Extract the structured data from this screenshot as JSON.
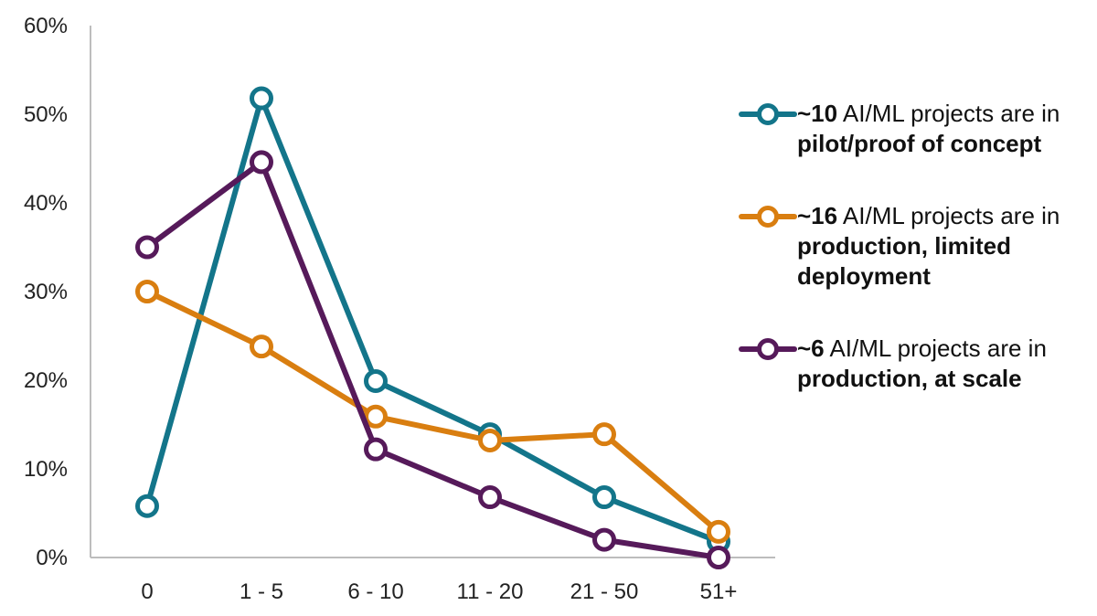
{
  "chart_data": {
    "type": "line",
    "categories": [
      "0",
      "1 - 5",
      "6 - 10",
      "11 - 20",
      "21 - 50",
      "51+"
    ],
    "yticks": [
      "0%",
      "10%",
      "20%",
      "30%",
      "40%",
      "50%",
      "60%"
    ],
    "ylim": [
      0,
      60
    ],
    "grid": false,
    "legend_position": "right",
    "series": [
      {
        "color": "#13758a",
        "values": [
          5.8,
          51.8,
          19.9,
          13.9,
          6.8,
          1.8
        ],
        "legend_parts": [
          {
            "text": "~10",
            "bold": true
          },
          {
            "text": " AI/ML projects are in ",
            "bold": false
          },
          {
            "text": "pilot/proof of concept",
            "bold": true
          }
        ]
      },
      {
        "color": "#d97e10",
        "values": [
          30.0,
          23.8,
          15.9,
          13.2,
          13.9,
          2.9
        ],
        "legend_parts": [
          {
            "text": "~16",
            "bold": true
          },
          {
            "text": " AI/ML projects are in ",
            "bold": false
          },
          {
            "text": "production, limited deployment",
            "bold": true
          }
        ]
      },
      {
        "color": "#561a5a",
        "values": [
          35.0,
          44.6,
          12.2,
          6.8,
          2.0,
          0.0
        ],
        "legend_parts": [
          {
            "text": "~6",
            "bold": true
          },
          {
            "text": " AI/ML projects are in ",
            "bold": false
          },
          {
            "text": "production, at scale",
            "bold": true
          }
        ]
      }
    ]
  }
}
